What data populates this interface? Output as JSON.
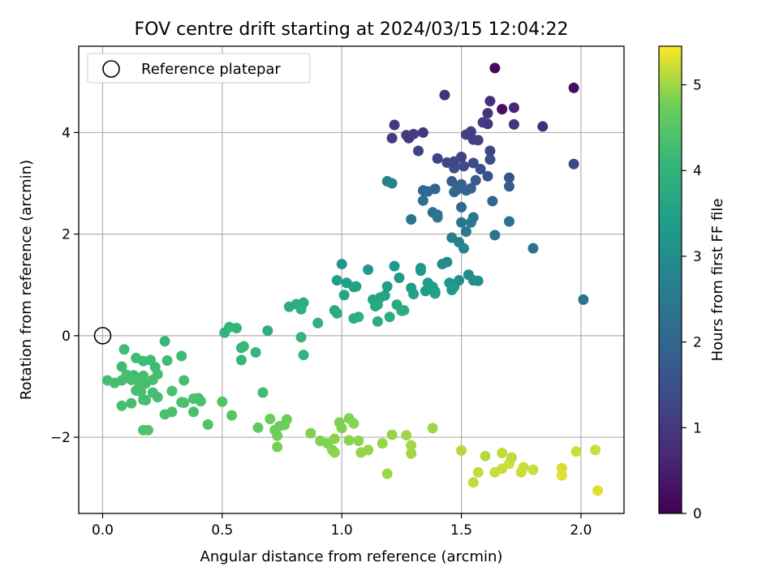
{
  "chart_data": {
    "type": "scatter",
    "title": "FOV centre drift starting at 2024/03/15 12:04:22",
    "xlabel": "Angular distance from reference (arcmin)",
    "ylabel": "Rotation from reference (arcmin)",
    "xlim": [
      -0.1,
      2.18
    ],
    "ylim": [
      -3.5,
      5.7
    ],
    "xticks": [
      0.0,
      0.5,
      1.0,
      1.5,
      2.0
    ],
    "xtick_labels": [
      "0.0",
      "0.5",
      "1.0",
      "1.5",
      "2.0"
    ],
    "yticks": [
      -2,
      0,
      2,
      4
    ],
    "ytick_labels": [
      "−2",
      "0",
      "2",
      "4"
    ],
    "grid": true,
    "legend": {
      "placement": "top-left",
      "entries": [
        "Reference platepar"
      ]
    },
    "colorbar": {
      "label": "Hours from first FF file",
      "range": [
        0,
        5.45
      ],
      "ticks": [
        0,
        1,
        2,
        3,
        4,
        5
      ],
      "colormap": "viridis"
    },
    "reference_point": {
      "x": 0.0,
      "y": 0.0
    },
    "series": [
      {
        "points": [
          [
            1.64,
            5.27,
            0.15
          ],
          [
            1.67,
            4.46,
            0.2
          ],
          [
            1.97,
            4.88,
            0.25
          ],
          [
            1.43,
            4.74,
            0.8
          ],
          [
            1.62,
            4.62,
            0.85
          ],
          [
            1.61,
            4.38,
            0.9
          ],
          [
            1.72,
            4.49,
            0.7
          ],
          [
            1.72,
            4.16,
            0.9
          ],
          [
            1.84,
            4.12,
            0.8
          ],
          [
            1.22,
            4.15,
            1.0
          ],
          [
            1.21,
            3.89,
            1.1
          ],
          [
            1.27,
            3.95,
            1.1
          ],
          [
            1.28,
            3.89,
            1.0
          ],
          [
            1.3,
            3.97,
            1.1
          ],
          [
            1.34,
            4.0,
            1.0
          ],
          [
            1.32,
            3.64,
            1.2
          ],
          [
            1.52,
            3.96,
            1.2
          ],
          [
            1.54,
            4.02,
            1.1
          ],
          [
            1.55,
            3.86,
            1.15
          ],
          [
            1.57,
            3.85,
            1.2
          ],
          [
            1.59,
            4.2,
            1.1
          ],
          [
            1.61,
            4.17,
            1.0
          ],
          [
            1.62,
            3.64,
            1.3
          ],
          [
            1.47,
            3.3,
            1.5
          ],
          [
            1.5,
            3.52,
            1.2
          ],
          [
            1.47,
            3.43,
            1.3
          ],
          [
            1.51,
            3.34,
            1.4
          ],
          [
            1.55,
            3.4,
            1.4
          ],
          [
            1.58,
            3.28,
            1.5
          ],
          [
            1.62,
            3.47,
            1.45
          ],
          [
            1.4,
            3.49,
            1.2
          ],
          [
            1.44,
            3.41,
            1.3
          ],
          [
            1.97,
            3.38,
            1.3
          ],
          [
            1.61,
            3.14,
            1.6
          ],
          [
            1.7,
            3.11,
            1.6
          ],
          [
            1.56,
            3.06,
            1.7
          ],
          [
            1.46,
            3.04,
            1.8
          ],
          [
            1.48,
            2.87,
            1.9
          ],
          [
            1.5,
            2.98,
            1.9
          ],
          [
            1.52,
            2.86,
            2.0
          ],
          [
            1.54,
            2.9,
            1.9
          ],
          [
            1.47,
            2.83,
            2.0
          ],
          [
            1.7,
            2.94,
            1.8
          ],
          [
            1.63,
            2.65,
            2.0
          ],
          [
            1.34,
            2.86,
            2.0
          ],
          [
            1.36,
            2.84,
            2.1
          ],
          [
            1.39,
            2.89,
            2.0
          ],
          [
            1.34,
            2.66,
            2.2
          ],
          [
            1.38,
            2.43,
            2.3
          ],
          [
            1.4,
            2.38,
            2.3
          ],
          [
            1.4,
            2.33,
            2.4
          ],
          [
            1.5,
            2.53,
            2.1
          ],
          [
            1.5,
            2.23,
            2.4
          ],
          [
            1.54,
            2.23,
            2.5
          ],
          [
            1.55,
            2.33,
            2.4
          ],
          [
            1.52,
            2.05,
            2.5
          ],
          [
            1.7,
            2.25,
            2.2
          ],
          [
            1.64,
            1.98,
            2.4
          ],
          [
            1.29,
            2.29,
            2.4
          ],
          [
            1.8,
            1.72,
            2.3
          ],
          [
            2.01,
            0.71,
            2.3
          ],
          [
            1.46,
            1.93,
            2.6
          ],
          [
            1.49,
            1.84,
            2.7
          ],
          [
            1.51,
            1.72,
            2.8
          ],
          [
            1.19,
            3.04,
            2.7
          ],
          [
            1.21,
            3.0,
            2.8
          ],
          [
            1.44,
            1.45,
            2.9
          ],
          [
            1.42,
            1.41,
            3.0
          ],
          [
            1.53,
            1.2,
            2.9
          ],
          [
            1.55,
            1.09,
            3.0
          ],
          [
            1.57,
            1.08,
            3.1
          ],
          [
            1.45,
            1.04,
            3.2
          ],
          [
            1.47,
            0.96,
            3.3
          ],
          [
            1.49,
            1.09,
            3.1
          ],
          [
            1.46,
            0.9,
            3.3
          ],
          [
            1.33,
            1.33,
            3.2
          ],
          [
            1.33,
            1.28,
            3.3
          ],
          [
            1.36,
            1.04,
            3.3
          ],
          [
            1.38,
            0.96,
            3.4
          ],
          [
            1.39,
            0.87,
            3.4
          ],
          [
            1.39,
            0.83,
            3.5
          ],
          [
            1.35,
            0.88,
            3.4
          ],
          [
            1.29,
            0.94,
            3.4
          ],
          [
            1.3,
            0.82,
            3.5
          ],
          [
            1.22,
            1.37,
            3.3
          ],
          [
            1.24,
            1.14,
            3.3
          ],
          [
            1.19,
            0.97,
            3.4
          ],
          [
            1.18,
            0.79,
            3.5
          ],
          [
            1.16,
            0.75,
            3.6
          ],
          [
            1.11,
            1.3,
            3.3
          ],
          [
            1.13,
            0.71,
            3.6
          ],
          [
            1.14,
            0.58,
            3.7
          ],
          [
            1.15,
            0.61,
            3.7
          ],
          [
            1.23,
            0.61,
            3.7
          ],
          [
            1.25,
            0.49,
            3.8
          ],
          [
            1.26,
            0.5,
            3.8
          ],
          [
            1.2,
            0.37,
            3.8
          ],
          [
            1.15,
            0.28,
            3.8
          ],
          [
            1.0,
            1.41,
            3.2
          ],
          [
            0.98,
            1.09,
            3.4
          ],
          [
            1.02,
            1.04,
            3.4
          ],
          [
            1.06,
            0.97,
            3.5
          ],
          [
            1.05,
            0.96,
            3.5
          ],
          [
            1.01,
            0.8,
            3.6
          ],
          [
            0.97,
            0.5,
            3.7
          ],
          [
            0.98,
            0.44,
            3.8
          ],
          [
            1.05,
            0.34,
            3.8
          ],
          [
            1.07,
            0.37,
            3.9
          ],
          [
            0.9,
            0.25,
            3.9
          ],
          [
            0.78,
            0.57,
            3.8
          ],
          [
            0.81,
            0.62,
            3.8
          ],
          [
            0.83,
            0.52,
            3.9
          ],
          [
            0.84,
            0.65,
            3.8
          ],
          [
            0.83,
            -0.03,
            4.0
          ],
          [
            0.84,
            -0.38,
            4.0
          ],
          [
            0.69,
            0.1,
            3.9
          ],
          [
            0.51,
            0.06,
            4.0
          ],
          [
            0.53,
            0.17,
            4.0
          ],
          [
            0.56,
            0.15,
            4.0
          ],
          [
            0.59,
            -0.21,
            4.1
          ],
          [
            0.58,
            -0.24,
            4.1
          ],
          [
            0.58,
            -0.48,
            4.1
          ],
          [
            0.64,
            -0.33,
            4.1
          ],
          [
            0.67,
            -1.12,
            4.2
          ],
          [
            0.26,
            -0.11,
            4.1
          ],
          [
            0.09,
            -0.27,
            4.2
          ],
          [
            0.08,
            -0.61,
            4.2
          ],
          [
            0.13,
            -0.78,
            4.2
          ],
          [
            0.14,
            -0.44,
            4.2
          ],
          [
            0.17,
            -0.5,
            4.2
          ],
          [
            0.2,
            -0.48,
            4.2
          ],
          [
            0.22,
            -0.62,
            4.2
          ],
          [
            0.27,
            -0.49,
            4.2
          ],
          [
            0.33,
            -0.4,
            4.2
          ],
          [
            0.02,
            -0.88,
            4.3
          ],
          [
            0.05,
            -0.93,
            4.3
          ],
          [
            0.08,
            -0.88,
            4.3
          ],
          [
            0.1,
            -0.77,
            4.3
          ],
          [
            0.12,
            -0.87,
            4.3
          ],
          [
            0.15,
            -0.9,
            4.3
          ],
          [
            0.17,
            -0.79,
            4.3
          ],
          [
            0.18,
            -0.94,
            4.3
          ],
          [
            0.21,
            -0.87,
            4.3
          ],
          [
            0.23,
            -0.76,
            4.3
          ],
          [
            0.14,
            -1.08,
            4.3
          ],
          [
            0.16,
            -1.1,
            4.3
          ],
          [
            0.17,
            -1.26,
            4.3
          ],
          [
            0.18,
            -1.27,
            4.3
          ],
          [
            0.21,
            -1.12,
            4.3
          ],
          [
            0.23,
            -1.21,
            4.3
          ],
          [
            0.12,
            -1.33,
            4.3
          ],
          [
            0.08,
            -1.38,
            4.3
          ],
          [
            0.29,
            -1.09,
            4.35
          ],
          [
            0.34,
            -0.88,
            4.3
          ],
          [
            0.33,
            -1.31,
            4.35
          ],
          [
            0.34,
            -1.32,
            4.35
          ],
          [
            0.38,
            -1.24,
            4.35
          ],
          [
            0.4,
            -1.23,
            4.35
          ],
          [
            0.41,
            -1.29,
            4.35
          ],
          [
            0.38,
            -1.5,
            4.35
          ],
          [
            0.29,
            -1.5,
            4.35
          ],
          [
            0.26,
            -1.55,
            4.35
          ],
          [
            0.17,
            -1.86,
            4.4
          ],
          [
            0.19,
            -1.86,
            4.4
          ],
          [
            0.44,
            -1.75,
            4.4
          ],
          [
            0.5,
            -1.3,
            4.45
          ],
          [
            0.54,
            -1.57,
            4.5
          ],
          [
            0.65,
            -1.81,
            4.6
          ],
          [
            0.7,
            -1.64,
            4.7
          ],
          [
            0.72,
            -1.86,
            4.75
          ],
          [
            0.73,
            -1.97,
            4.75
          ],
          [
            0.73,
            -2.19,
            4.8
          ],
          [
            0.74,
            -1.78,
            4.75
          ],
          [
            0.76,
            -1.76,
            4.75
          ],
          [
            0.77,
            -1.65,
            4.75
          ],
          [
            0.87,
            -1.92,
            4.85
          ],
          [
            0.91,
            -2.07,
            4.85
          ],
          [
            0.94,
            -2.12,
            4.85
          ],
          [
            0.96,
            -2.25,
            4.9
          ],
          [
            0.97,
            -2.3,
            4.9
          ],
          [
            0.97,
            -2.03,
            4.9
          ],
          [
            0.99,
            -1.71,
            4.85
          ],
          [
            1.0,
            -1.82,
            4.85
          ],
          [
            1.03,
            -2.06,
            4.9
          ],
          [
            1.03,
            -1.63,
            4.85
          ],
          [
            1.05,
            -1.73,
            4.9
          ],
          [
            1.07,
            -2.07,
            4.9
          ],
          [
            1.08,
            -2.3,
            4.95
          ],
          [
            1.11,
            -2.25,
            4.95
          ],
          [
            1.17,
            -2.12,
            4.95
          ],
          [
            1.21,
            -1.95,
            4.95
          ],
          [
            1.27,
            -1.96,
            5.0
          ],
          [
            1.29,
            -2.16,
            5.0
          ],
          [
            1.29,
            -2.32,
            5.0
          ],
          [
            1.19,
            -2.72,
            5.0
          ],
          [
            1.38,
            -1.82,
            5.0
          ],
          [
            1.5,
            -2.26,
            5.1
          ],
          [
            1.57,
            -2.69,
            5.15
          ],
          [
            1.55,
            -2.89,
            5.15
          ],
          [
            1.6,
            -2.37,
            5.1
          ],
          [
            1.64,
            -2.69,
            5.2
          ],
          [
            1.67,
            -2.31,
            5.15
          ],
          [
            1.67,
            -2.62,
            5.2
          ],
          [
            1.7,
            -2.52,
            5.2
          ],
          [
            1.71,
            -2.4,
            5.15
          ],
          [
            1.75,
            -2.69,
            5.2
          ],
          [
            1.76,
            -2.59,
            5.2
          ],
          [
            1.8,
            -2.64,
            5.2
          ],
          [
            1.92,
            -2.61,
            5.25
          ],
          [
            1.92,
            -2.75,
            5.3
          ],
          [
            1.98,
            -2.28,
            5.2
          ],
          [
            2.06,
            -2.25,
            5.2
          ],
          [
            2.07,
            -3.05,
            5.3
          ]
        ]
      }
    ]
  }
}
